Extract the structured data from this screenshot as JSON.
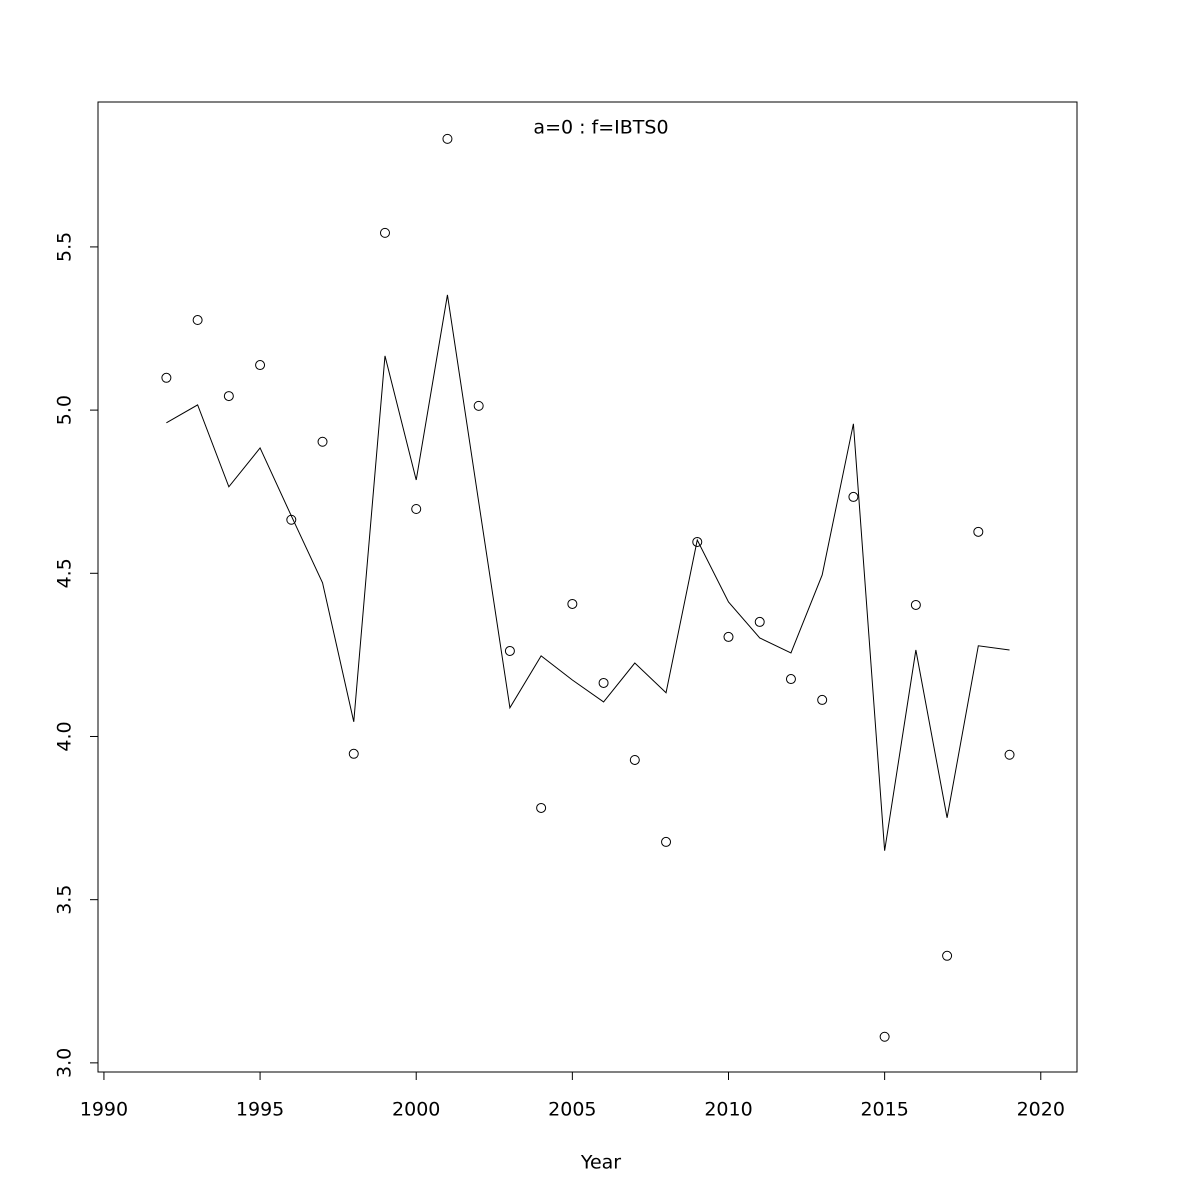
{
  "chart_data": {
    "type": "line",
    "title": "a=0  :  f=IBTS0",
    "title_color": "#808080",
    "x_label": "Year",
    "xlim": [
      1989.81,
      2021.16
    ],
    "ylim": [
      2.972,
      5.944
    ],
    "xticks": [
      1990,
      1995,
      2000,
      2005,
      2010,
      2015,
      2020
    ],
    "yticks": [
      {
        "value": 3.0,
        "label": "3.0"
      },
      {
        "value": 3.5,
        "label": "3.5"
      },
      {
        "value": 4.0,
        "label": "4.0"
      },
      {
        "value": 4.5,
        "label": "4.5"
      },
      {
        "value": 5.0,
        "label": "5.0"
      },
      {
        "value": 5.5,
        "label": "5.5"
      }
    ],
    "x": [
      1992,
      1993,
      1994,
      1995,
      1996,
      1997,
      1998,
      1999,
      2000,
      2001,
      2002,
      2003,
      2004,
      2005,
      2006,
      2007,
      2008,
      2009,
      2010,
      2011,
      2012,
      2013,
      2014,
      2015,
      2016,
      2017,
      2018,
      2019
    ],
    "series": [
      {
        "style": "points",
        "color": "#000000",
        "values": [
          5.099,
          5.276,
          5.043,
          5.138,
          4.664,
          4.903,
          3.947,
          5.543,
          4.697,
          5.831,
          5.013,
          4.262,
          3.781,
          4.406,
          4.164,
          3.928,
          3.677,
          4.596,
          4.305,
          4.351,
          4.176,
          4.112,
          4.734,
          3.08,
          4.403,
          3.328,
          4.627,
          3.944
        ]
      },
      {
        "style": "line",
        "color": "#000000",
        "values": [
          4.961,
          5.016,
          4.765,
          4.884,
          4.676,
          4.471,
          4.045,
          5.166,
          4.786,
          5.353,
          4.719,
          4.088,
          4.247,
          4.173,
          4.106,
          4.225,
          4.134,
          4.602,
          4.412,
          4.302,
          4.256,
          4.495,
          4.958,
          3.65,
          4.265,
          3.751,
          4.278,
          4.265
        ]
      }
    ]
  }
}
